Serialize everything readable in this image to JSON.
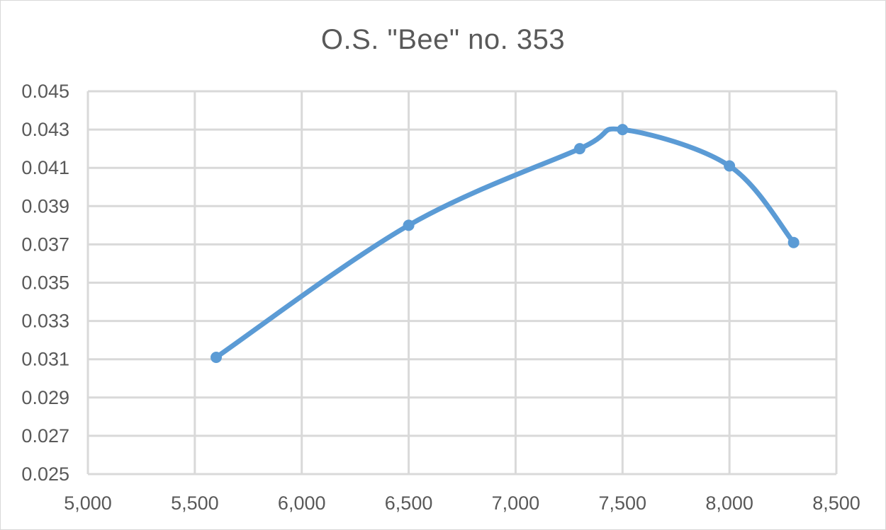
{
  "chart_data": {
    "type": "line",
    "title": "O.S. \"Bee\" no. 353",
    "xlabel": "",
    "ylabel": "",
    "xlim": [
      5000,
      8500
    ],
    "ylim": [
      0.025,
      0.045
    ],
    "x_ticks": [
      "5,000",
      "5,500",
      "6,000",
      "6,500",
      "7,000",
      "7,500",
      "8,000",
      "8,500"
    ],
    "y_ticks": [
      "0.025",
      "0.027",
      "0.029",
      "0.031",
      "0.033",
      "0.035",
      "0.037",
      "0.039",
      "0.041",
      "0.043",
      "0.045"
    ],
    "grid": true,
    "legend": "none",
    "smooth": true,
    "series": [
      {
        "color": "#5b9bd5",
        "x": [
          5600,
          6500,
          7300,
          7500,
          8000,
          8300
        ],
        "y": [
          0.0311,
          0.038,
          0.042,
          0.043,
          0.0411,
          0.0371
        ]
      }
    ]
  }
}
